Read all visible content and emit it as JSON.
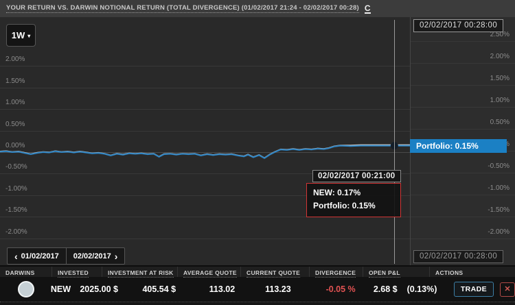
{
  "header": {
    "title": "YOUR RETURN VS. DARWIN NOTIONAL RETURN (TOTAL DIVERGENCE) (01/02/2017 21:24 - 02/02/2017 00:28)"
  },
  "icons": {
    "refresh": "C",
    "caret_down": "▾",
    "chevron_left": "‹",
    "chevron_right": "›",
    "close": "✕"
  },
  "chart": {
    "timeframe": "1W",
    "top_right_date": "02/02/2017 00:28:00",
    "bottom_right_date": "02/02/2017 00:28:00",
    "portfolio_flag": "Portfolio: 0.15%",
    "tooltip": {
      "date": "02/02/2017 00:21:00",
      "lines": [
        "NEW: 0.17%",
        "Portfolio: 0.15%"
      ]
    },
    "nav": {
      "prev": "01/02/2017",
      "next": "02/02/2017"
    }
  },
  "chart_data": {
    "type": "line",
    "title": "YOUR RETURN VS. DARWIN NOTIONAL RETURN (TOTAL DIVERGENCE)",
    "x_range": [
      "01/02/2017 21:24",
      "02/02/2017 00:28"
    ],
    "crosshair_time": "02/02/2017 00:21:00",
    "crosshair_x_fraction": 0.962,
    "grid": true,
    "y_axis_left": {
      "ticks": [
        {
          "label": "2.00%",
          "value": 2.0
        },
        {
          "label": "1.50%",
          "value": 1.5
        },
        {
          "label": "1.00%",
          "value": 1.0
        },
        {
          "label": "0.50%",
          "value": 0.5
        },
        {
          "label": "0.00%",
          "value": 0.0
        },
        {
          "label": "-0.50%",
          "value": -0.5
        },
        {
          "label": "-1.00%",
          "value": -1.0
        },
        {
          "label": "-1.50%",
          "value": -1.5
        },
        {
          "label": "-2.00%",
          "value": -2.0
        }
      ]
    },
    "y_axis_right": {
      "ticks": [
        {
          "label": "2.50%",
          "value": 2.5
        },
        {
          "label": "2.00%",
          "value": 2.0
        },
        {
          "label": "1.50%",
          "value": 1.5
        },
        {
          "label": "1.00%",
          "value": 1.0
        },
        {
          "label": "0.50%",
          "value": 0.5
        },
        {
          "label": "0.00%",
          "value": 0.0
        },
        {
          "label": "-0.50%",
          "value": -0.5
        },
        {
          "label": "-1.00%",
          "value": -1.0
        },
        {
          "label": "-1.50%",
          "value": -1.5
        },
        {
          "label": "-2.00%",
          "value": -2.0
        }
      ]
    },
    "series": [
      {
        "name": "NEW",
        "color": "#d9d9d9",
        "width": 1.4,
        "final_value_pct": 0.17,
        "points": [
          [
            0.0,
            0.02
          ],
          [
            0.015,
            0.03
          ],
          [
            0.03,
            0.01
          ],
          [
            0.045,
            0.02
          ],
          [
            0.06,
            -0.01
          ],
          [
            0.075,
            -0.04
          ],
          [
            0.09,
            -0.01
          ],
          [
            0.105,
            0.01
          ],
          [
            0.12,
            0.0
          ],
          [
            0.135,
            0.03
          ],
          [
            0.15,
            0.01
          ],
          [
            0.165,
            0.02
          ],
          [
            0.18,
            0.0
          ],
          [
            0.195,
            0.02
          ],
          [
            0.21,
            0.0
          ],
          [
            0.225,
            -0.02
          ],
          [
            0.24,
            -0.01
          ],
          [
            0.255,
            -0.03
          ],
          [
            0.27,
            -0.07
          ],
          [
            0.285,
            -0.03
          ],
          [
            0.3,
            -0.05
          ],
          [
            0.315,
            -0.02
          ],
          [
            0.33,
            -0.03
          ],
          [
            0.345,
            -0.02
          ],
          [
            0.36,
            -0.04
          ],
          [
            0.375,
            -0.03
          ],
          [
            0.388,
            -0.1
          ],
          [
            0.4,
            -0.04
          ],
          [
            0.415,
            -0.03
          ],
          [
            0.43,
            -0.05
          ],
          [
            0.445,
            -0.03
          ],
          [
            0.46,
            -0.04
          ],
          [
            0.475,
            -0.03
          ],
          [
            0.49,
            -0.07
          ],
          [
            0.505,
            -0.04
          ],
          [
            0.52,
            -0.06
          ],
          [
            0.535,
            -0.04
          ],
          [
            0.55,
            -0.05
          ],
          [
            0.565,
            -0.04
          ],
          [
            0.58,
            -0.07
          ],
          [
            0.595,
            -0.09
          ],
          [
            0.605,
            -0.05
          ],
          [
            0.618,
            -0.11
          ],
          [
            0.632,
            -0.06
          ],
          [
            0.645,
            -0.13
          ],
          [
            0.658,
            -0.05
          ],
          [
            0.67,
            0.01
          ],
          [
            0.685,
            0.07
          ],
          [
            0.7,
            0.06
          ],
          [
            0.715,
            0.08
          ],
          [
            0.73,
            0.06
          ],
          [
            0.745,
            0.08
          ],
          [
            0.76,
            0.07
          ],
          [
            0.775,
            0.09
          ],
          [
            0.79,
            0.08
          ],
          [
            0.802,
            0.1
          ],
          [
            0.815,
            0.14
          ],
          [
            0.83,
            0.16
          ],
          [
            0.855,
            0.16
          ],
          [
            0.88,
            0.17
          ],
          [
            0.91,
            0.17
          ],
          [
            0.94,
            0.17
          ],
          [
            0.97,
            0.17
          ],
          [
            1.0,
            0.17
          ]
        ]
      },
      {
        "name": "Portfolio",
        "color": "#2d84c4",
        "width": 2,
        "final_value_pct": 0.15,
        "points": [
          [
            0.0,
            0.01
          ],
          [
            0.015,
            0.02
          ],
          [
            0.03,
            0.0
          ],
          [
            0.045,
            0.01
          ],
          [
            0.06,
            -0.02
          ],
          [
            0.075,
            -0.05
          ],
          [
            0.09,
            -0.02
          ],
          [
            0.105,
            0.0
          ],
          [
            0.12,
            -0.01
          ],
          [
            0.135,
            0.02
          ],
          [
            0.15,
            0.0
          ],
          [
            0.165,
            0.01
          ],
          [
            0.18,
            -0.01
          ],
          [
            0.195,
            0.01
          ],
          [
            0.21,
            -0.01
          ],
          [
            0.225,
            -0.03
          ],
          [
            0.24,
            -0.02
          ],
          [
            0.255,
            -0.04
          ],
          [
            0.27,
            -0.08
          ],
          [
            0.285,
            -0.04
          ],
          [
            0.3,
            -0.06
          ],
          [
            0.315,
            -0.03
          ],
          [
            0.33,
            -0.04
          ],
          [
            0.345,
            -0.03
          ],
          [
            0.36,
            -0.05
          ],
          [
            0.375,
            -0.04
          ],
          [
            0.388,
            -0.11
          ],
          [
            0.4,
            -0.05
          ],
          [
            0.415,
            -0.04
          ],
          [
            0.43,
            -0.06
          ],
          [
            0.445,
            -0.04
          ],
          [
            0.46,
            -0.05
          ],
          [
            0.475,
            -0.04
          ],
          [
            0.49,
            -0.08
          ],
          [
            0.505,
            -0.05
          ],
          [
            0.52,
            -0.07
          ],
          [
            0.535,
            -0.05
          ],
          [
            0.55,
            -0.06
          ],
          [
            0.565,
            -0.05
          ],
          [
            0.58,
            -0.08
          ],
          [
            0.595,
            -0.1
          ],
          [
            0.605,
            -0.06
          ],
          [
            0.618,
            -0.12
          ],
          [
            0.632,
            -0.07
          ],
          [
            0.645,
            -0.14
          ],
          [
            0.658,
            -0.06
          ],
          [
            0.67,
            0.0
          ],
          [
            0.685,
            0.06
          ],
          [
            0.7,
            0.05
          ],
          [
            0.715,
            0.07
          ],
          [
            0.73,
            0.05
          ],
          [
            0.745,
            0.07
          ],
          [
            0.76,
            0.06
          ],
          [
            0.775,
            0.08
          ],
          [
            0.79,
            0.07
          ],
          [
            0.802,
            0.09
          ],
          [
            0.815,
            0.13
          ],
          [
            0.83,
            0.15
          ],
          [
            0.855,
            0.14
          ],
          [
            0.88,
            0.15
          ],
          [
            0.91,
            0.15
          ],
          [
            0.94,
            0.15
          ],
          [
            0.97,
            0.15
          ],
          [
            1.0,
            0.15
          ]
        ]
      }
    ],
    "accent_colors": {
      "portfolio_blue": "#1b80c4",
      "tooltip_red": "#d23535"
    }
  },
  "table": {
    "columns": [
      "DARWINS",
      "INVESTED",
      "INVESTMENT AT RISK",
      "AVERAGE QUOTE",
      "CURRENT QUOTE",
      "DIVERGENCE",
      "OPEN P&L",
      "ACTIONS"
    ],
    "row": {
      "darwin": "NEW",
      "invested": "2025.00 $",
      "investment_at_risk": "405.54 $",
      "average_quote": "113.02",
      "current_quote": "113.23",
      "divergence": "-0.05 %",
      "open_pl": "2.68 $",
      "open_pl_pct": "(0.13%)",
      "trade_label": "TRADE"
    }
  }
}
